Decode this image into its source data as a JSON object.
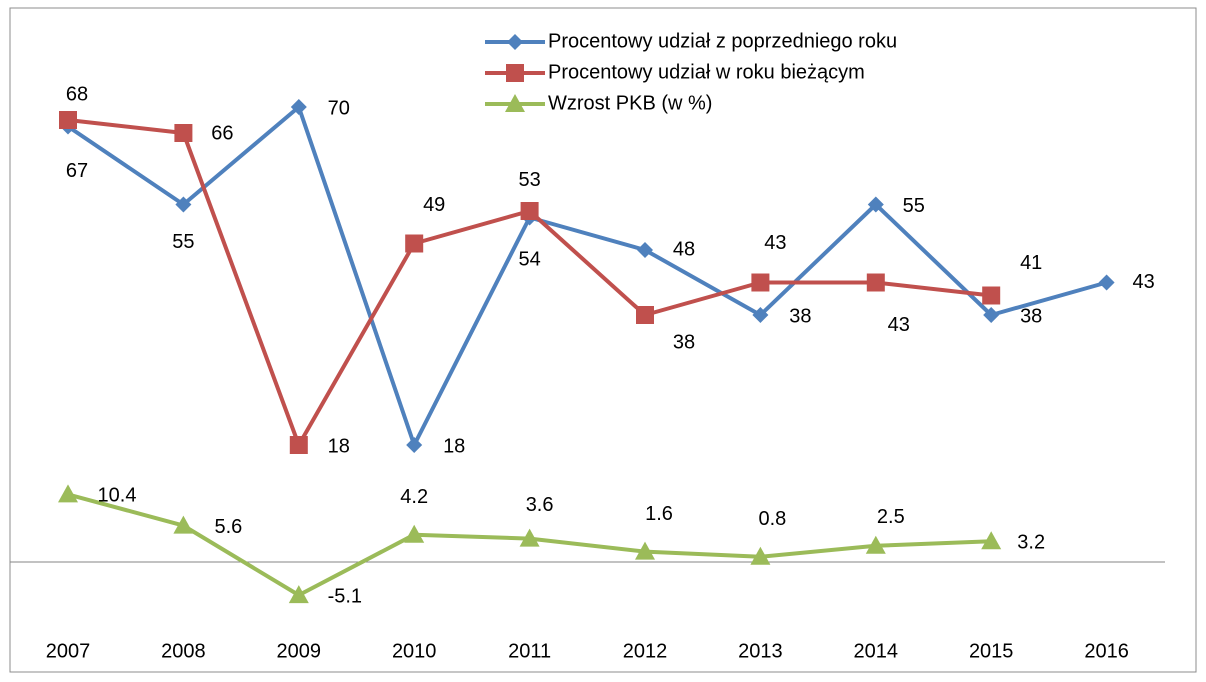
{
  "chart_data": {
    "type": "line",
    "categories": [
      "2007",
      "2008",
      "2009",
      "2010",
      "2011",
      "2012",
      "2013",
      "2014",
      "2015",
      "2016"
    ],
    "series": [
      {
        "name": "Procentowy udział z poprzedniego roku",
        "color": "#4f81bd",
        "marker": "diamond",
        "values": [
          67,
          55,
          70,
          18,
          53,
          48,
          38,
          55,
          38,
          43
        ]
      },
      {
        "name": "Procentowy udział w roku bieżącym",
        "color": "#c0504d",
        "marker": "square",
        "values": [
          68,
          66,
          18,
          49,
          54,
          38,
          43,
          43,
          41,
          null
        ]
      },
      {
        "name": "Wzrost PKB (w %)",
        "color": "#9bbb59",
        "marker": "triangle",
        "values": [
          10.4,
          5.6,
          -5.1,
          4.2,
          3.6,
          1.6,
          0.8,
          2.5,
          3.2,
          null
        ]
      }
    ],
    "ylim": [
      -10,
      80
    ],
    "grid": false,
    "legend": "top"
  }
}
